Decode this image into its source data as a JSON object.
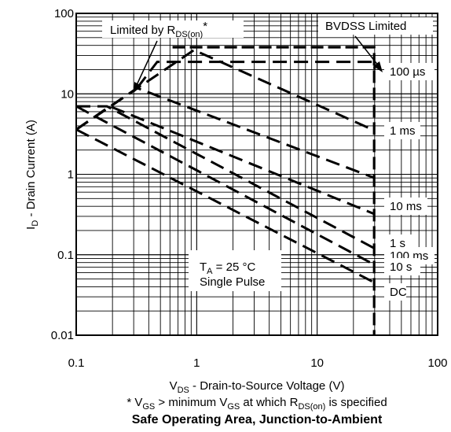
{
  "chart_data": {
    "type": "line",
    "title": "Safe Operating Area, Junction-to-Ambient",
    "xlabel": {
      "main": "V",
      "sub": "DS",
      "rest": " - Drain-to-Source Voltage (V)"
    },
    "ylabel": {
      "main": "I",
      "sub": "D",
      "rest": " - Drain Current (A)"
    },
    "footnote": {
      "p1": "* V",
      "s1": "GS",
      "p2": " > minimum V",
      "s2": "GS",
      "p3": " at which R",
      "s3": "DS(on)",
      "p4": " is specified"
    },
    "x_scale": "log",
    "y_scale": "log",
    "xlim": [
      0.1,
      100
    ],
    "ylim": [
      0.01,
      100
    ],
    "x_ticks": [
      "0.1",
      "1",
      "10",
      "100"
    ],
    "y_ticks": [
      "0.01",
      "0.1",
      "1",
      "10",
      "100"
    ],
    "grid": true,
    "annotations": {
      "rds_pre": "Limited by R",
      "rds_sub": "DS(on)",
      "rds_post": "*",
      "bvdss": "BVDSS Limited",
      "ta_pre": "T",
      "ta_sub": "A",
      "ta_post": " = 25 °C",
      "pulse": "Single Pulse"
    },
    "series": [
      {
        "name": "100 µs",
        "x": [
          0.32,
          0.47,
          29.7,
          30
        ],
        "y": [
          11.8,
          25,
          25,
          20
        ]
      },
      {
        "name": "1 ms",
        "x": [
          0.1,
          0.95,
          30
        ],
        "y": [
          3.6,
          35,
          3.5
        ]
      },
      {
        "name": "10 ms",
        "x": [
          0.1,
          0.32,
          30
        ],
        "y": [
          3.6,
          11.8,
          0.9
        ]
      },
      {
        "name": "100 ms",
        "x": [
          0.1,
          0.19,
          30
        ],
        "y": [
          3.6,
          7,
          0.32
        ]
      },
      {
        "name": "1 s",
        "x": [
          0.1,
          0.18,
          30
        ],
        "y": [
          7,
          7,
          0.12
        ]
      },
      {
        "name": "10 s",
        "x": [
          0.1,
          30
        ],
        "y": [
          7,
          0.075
        ]
      },
      {
        "name": "DC",
        "x": [
          0.1,
          30
        ],
        "y": [
          3.6,
          0.045
        ]
      },
      {
        "name": "BVDSS",
        "x": [
          0.63,
          29.7,
          29.7
        ],
        "y": [
          38,
          38,
          0.01
        ]
      }
    ]
  }
}
